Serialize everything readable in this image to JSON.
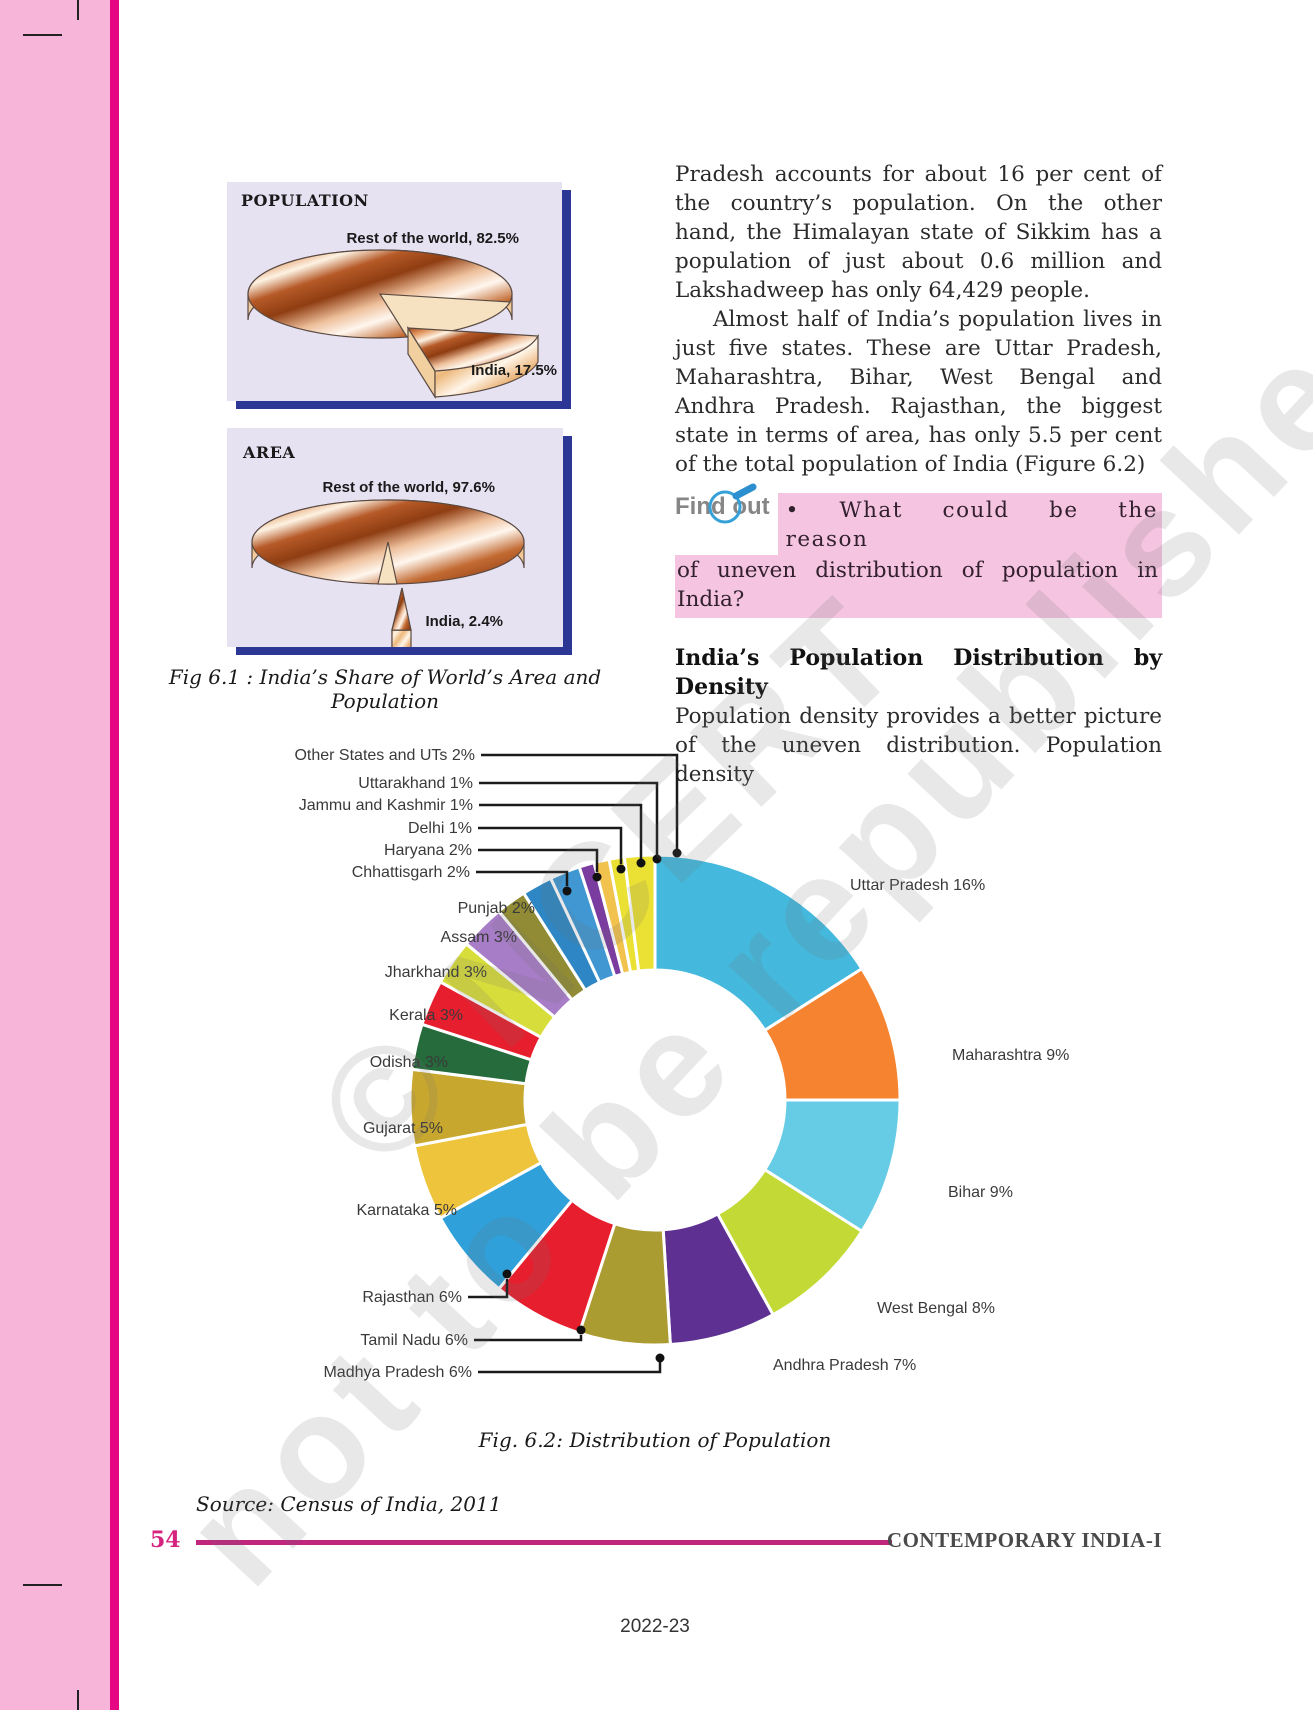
{
  "column": {
    "p1": "Pradesh accounts for about 16 per cent of the country’s population.  On the other hand, the Himalayan state of Sikkim has a population of just about 0.6 million and Lakshadweep has only 64,429 people.",
    "p2": "Almost half of India’s population lives in just five states. These are Uttar Pradesh, Maharashtra, Bihar, West Bengal and Andhra Pradesh. Rajasthan, the biggest state in terms of area, has only 5.5 per cent of the total population of India (Figure 6.2)",
    "p3": "Population density provides a better picture of the uneven distribution. Population density"
  },
  "findout": {
    "label": "Find out",
    "line1": "• What could be the reason",
    "line2": "of uneven distribution of population in India?"
  },
  "heading": "India’s Population Distribution by Density",
  "fig61": {
    "caption": "Fig 6.1 : India’s Share of World’s Area and Population"
  },
  "fig62": {
    "caption": "Fig. 6.2: Distribution of Population"
  },
  "footer": {
    "source": "Source: Census of India, 2011",
    "page_number": "54",
    "book_title": "CONTEMPORARY INDIA-I",
    "year": "2022-23"
  },
  "watermark": {
    "line1": "© NCERT",
    "line2": "not to be republished"
  },
  "colors": {
    "pink_strip": "#f7b5da",
    "magenta_bar": "#e60684",
    "box_bg": "#e6e2f2",
    "box_shadow": "#2c3694",
    "highlight": "#f4c4e0",
    "foot_rule": "#c0267e",
    "page_number": "#d6237e"
  },
  "chart_data": [
    {
      "type": "pie",
      "title": "POPULATION",
      "style": "3d-exploded-copper",
      "slices": [
        {
          "label": "Rest of the world, 82.5%",
          "name": "Rest of the world",
          "value": 82.5
        },
        {
          "label": "India, 17.5%",
          "name": "India",
          "value": 17.5
        }
      ]
    },
    {
      "type": "pie",
      "title": "AREA",
      "style": "3d-exploded-copper",
      "slices": [
        {
          "label": "Rest of the world, 97.6%",
          "name": "Rest of the world",
          "value": 97.6
        },
        {
          "label": "India, 2.4%",
          "name": "India",
          "value": 2.4
        }
      ]
    },
    {
      "type": "pie",
      "subtype": "donut",
      "title": "Fig. 6.2: Distribution of Population",
      "unit": "per cent of India's population",
      "start": "top, clockwise",
      "segments": [
        {
          "label": "Uttar Pradesh 16%",
          "name": "Uttar Pradesh",
          "value": 16,
          "color": "#44b9dd"
        },
        {
          "label": "Maharashtra 9%",
          "name": "Maharashtra",
          "value": 9,
          "color": "#f5832f"
        },
        {
          "label": "Bihar 9%",
          "name": "Bihar",
          "value": 9,
          "color": "#66cce6"
        },
        {
          "label": "West Bengal 8%",
          "name": "West Bengal",
          "value": 8,
          "color": "#c3da36"
        },
        {
          "label": "Andhra Pradesh 7%",
          "name": "Andhra Pradesh",
          "value": 7,
          "color": "#5e3092"
        },
        {
          "label": "Madhya Pradesh 6%",
          "name": "Madhya Pradesh",
          "value": 6,
          "color": "#ab9c31"
        },
        {
          "label": "Tamil Nadu 6%",
          "name": "Tamil Nadu",
          "value": 6,
          "color": "#e71e2e"
        },
        {
          "label": "Rajasthan 6%",
          "name": "Rajasthan",
          "value": 6,
          "color": "#2fa0d9"
        },
        {
          "label": "Karnataka 5%",
          "name": "Karnataka",
          "value": 5,
          "color": "#efc43d"
        },
        {
          "label": "Gujarat 5%",
          "name": "Gujarat",
          "value": 5,
          "color": "#c8a72f"
        },
        {
          "label": "Odisha 3%",
          "name": "Odisha",
          "value": 3,
          "color": "#256b3b"
        },
        {
          "label": "Kerala 3%",
          "name": "Kerala",
          "value": 3,
          "color": "#e71e2e"
        },
        {
          "label": "Jharkhand 3%",
          "name": "Jharkhand",
          "value": 3,
          "color": "#d7dd3b"
        },
        {
          "label": "Assam 3%",
          "name": "Assam",
          "value": 3,
          "color": "#a87dc7"
        },
        {
          "label": "Punjab 2%",
          "name": "Punjab",
          "value": 2,
          "color": "#908b34"
        },
        {
          "label": "Chhattisgarh 2%",
          "name": "Chhattisgarh",
          "value": 2,
          "color": "#2e87c4"
        },
        {
          "label": "Haryana 2%",
          "name": "Haryana",
          "value": 2,
          "color": "#4097d2"
        },
        {
          "label": "Delhi 1%",
          "name": "Delhi",
          "value": 1,
          "color": "#7b3ca0"
        },
        {
          "label": "Jammu and Kashmir 1%",
          "name": "Jammu and Kashmir",
          "value": 1,
          "color": "#f1c24d"
        },
        {
          "label": "Uttarakhand 1%",
          "name": "Uttarakhand",
          "value": 1,
          "color": "#eae134"
        },
        {
          "label": "Other States and UTs 2%",
          "name": "Other States and UTs",
          "value": 2,
          "color": "#eae134"
        }
      ]
    }
  ]
}
